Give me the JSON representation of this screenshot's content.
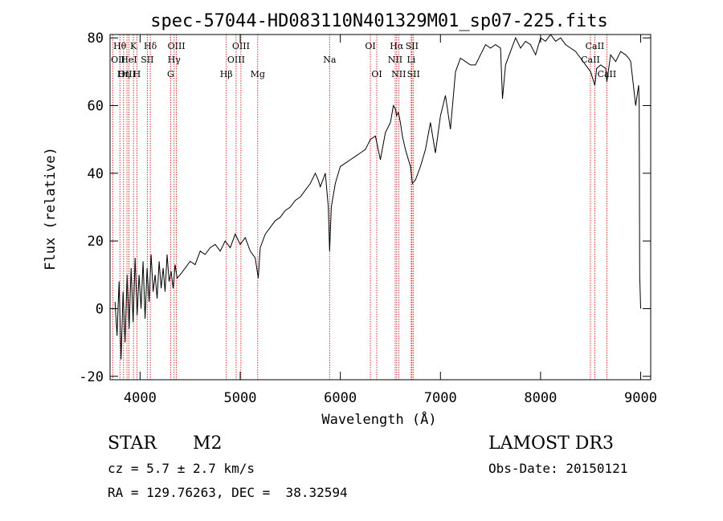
{
  "chart_data": {
    "type": "line",
    "title": "spec-57044-HD083110N401329M01_sp07-225.fits",
    "xlabel": "Wavelength (Å)",
    "ylabel": "Flux (relative)",
    "xlim": [
      3700,
      9100
    ],
    "ylim": [
      -21,
      81
    ],
    "xticks": [
      4000,
      5000,
      6000,
      7000,
      8000,
      9000
    ],
    "yticks": [
      -20,
      0,
      20,
      40,
      60,
      80
    ],
    "series": [
      {
        "name": "spectrum",
        "x": [
          3750,
          3770,
          3790,
          3810,
          3830,
          3850,
          3870,
          3890,
          3910,
          3930,
          3950,
          3970,
          3990,
          4010,
          4030,
          4050,
          4070,
          4090,
          4110,
          4130,
          4150,
          4170,
          4190,
          4210,
          4230,
          4250,
          4270,
          4290,
          4310,
          4330,
          4350,
          4370,
          4400,
          4450,
          4500,
          4550,
          4600,
          4650,
          4700,
          4750,
          4800,
          4850,
          4900,
          4950,
          5000,
          5050,
          5100,
          5150,
          5180,
          5200,
          5250,
          5300,
          5350,
          5400,
          5450,
          5500,
          5550,
          5600,
          5650,
          5700,
          5750,
          5780,
          5800,
          5850,
          5880,
          5893,
          5910,
          5950,
          6000,
          6050,
          6100,
          6150,
          6200,
          6250,
          6300,
          6350,
          6400,
          6450,
          6500,
          6530,
          6550,
          6563,
          6580,
          6600,
          6620,
          6650,
          6700,
          6720,
          6750,
          6800,
          6850,
          6900,
          6950,
          7000,
          7050,
          7100,
          7150,
          7200,
          7250,
          7300,
          7350,
          7400,
          7450,
          7500,
          7550,
          7600,
          7620,
          7650,
          7700,
          7750,
          7800,
          7850,
          7900,
          7950,
          8000,
          8050,
          8100,
          8150,
          8200,
          8250,
          8300,
          8350,
          8400,
          8450,
          8500,
          8542,
          8560,
          8600,
          8650,
          8662,
          8700,
          8750,
          8800,
          8850,
          8880,
          8900,
          8950,
          8980,
          8985,
          8990,
          9000
        ],
        "y": [
          2,
          -8,
          8,
          -15,
          5,
          -10,
          10,
          -6,
          12,
          -4,
          15,
          -2,
          10,
          0,
          14,
          -3,
          12,
          2,
          16,
          5,
          10,
          3,
          14,
          6,
          12,
          5,
          16,
          8,
          11,
          6,
          13,
          9,
          10,
          12,
          14,
          13,
          17,
          16,
          18,
          19,
          17,
          20,
          18,
          22,
          19,
          21,
          17,
          15,
          9,
          18,
          22,
          24,
          26,
          27,
          29,
          30,
          32,
          33,
          35,
          37,
          40,
          38,
          36,
          40,
          30,
          17,
          30,
          37,
          42,
          43,
          44,
          45,
          46,
          47,
          50,
          51,
          44,
          52,
          55,
          60,
          59,
          57,
          58,
          55,
          51,
          47,
          42,
          37,
          38,
          42,
          47,
          55,
          46,
          57,
          63,
          53,
          70,
          74,
          73,
          72,
          72,
          75,
          78,
          77,
          78,
          77,
          62,
          72,
          76,
          80,
          77,
          79,
          78,
          75,
          80,
          79,
          81,
          79,
          80,
          78,
          77,
          76,
          74,
          72,
          70,
          66,
          71,
          72,
          71,
          67,
          75,
          73,
          76,
          75,
          74,
          73,
          60,
          66,
          60,
          10,
          0
        ]
      }
    ],
    "annotations": [
      {
        "label": "Hθ",
        "x": 3798,
        "row": 1
      },
      {
        "label": "OII",
        "x": 3727,
        "row": 2
      },
      {
        "label": "OIII",
        "x": 3869,
        "row": 3
      },
      {
        "label": "K",
        "x": 3934,
        "row": 1
      },
      {
        "label": "HeI",
        "x": 3889,
        "row": 2
      },
      {
        "label": "Hη",
        "x": 3835,
        "row": 3
      },
      {
        "label": "Hδ",
        "x": 4102,
        "row": 1
      },
      {
        "label": "SII",
        "x": 4072,
        "row": 2
      },
      {
        "label": "H",
        "x": 3968,
        "row": 3
      },
      {
        "label": "OIII",
        "x": 4363,
        "row": 1
      },
      {
        "label": "Hγ",
        "x": 4340,
        "row": 2
      },
      {
        "label": "G",
        "x": 4305,
        "row": 3
      },
      {
        "label": "OIII",
        "x": 5007,
        "row": 1
      },
      {
        "label": "OIII",
        "x": 4959,
        "row": 2
      },
      {
        "label": "Hβ",
        "x": 4861,
        "row": 3
      },
      {
        "label": "Mg",
        "x": 5175,
        "row": 3
      },
      {
        "label": "Na",
        "x": 5893,
        "row": 2
      },
      {
        "label": "OI",
        "x": 6300,
        "row": 1
      },
      {
        "label": "OI",
        "x": 6364,
        "row": 3
      },
      {
        "label": "Hα",
        "x": 6563,
        "row": 1
      },
      {
        "label": "SII",
        "x": 6716,
        "row": 1
      },
      {
        "label": "NII",
        "x": 6548,
        "row": 2
      },
      {
        "label": "Li",
        "x": 6708,
        "row": 2
      },
      {
        "label": "NII",
        "x": 6583,
        "row": 3
      },
      {
        "label": "SII",
        "x": 6731,
        "row": 3
      },
      {
        "label": "CaII",
        "x": 8542,
        "row": 1
      },
      {
        "label": "CaII",
        "x": 8498,
        "row": 2
      },
      {
        "label": "CaII",
        "x": 8662,
        "row": 3
      }
    ]
  },
  "info": {
    "object_type": "STAR",
    "subclass": "M2",
    "survey": "LAMOST DR3",
    "cz": "cz = 5.7 ± 2.7 km/s",
    "obs_date": "Obs-Date: 20150121",
    "coords": "RA = 129.76263, DEC =  38.32594"
  },
  "colors": {
    "line_marker": "#cc0000",
    "spectrum": "#000000"
  }
}
